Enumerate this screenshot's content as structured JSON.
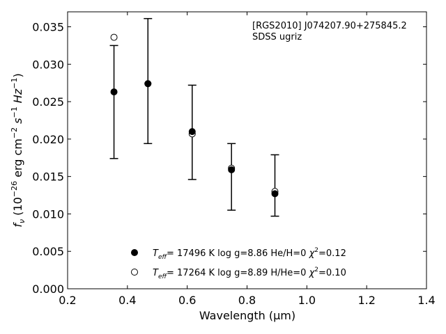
{
  "chart_data": {
    "type": "scatter",
    "annotation": [
      "[RGS2010] J074207.90+275845.2",
      "SDSS ugriz"
    ],
    "xlabel": "Wavelength (μm)",
    "ylabel_parts": {
      "f": "f",
      "f_sub": "ν",
      "unit_open": " (10",
      "exp26": "−26",
      "erg": " erg cm",
      "exp2": "−2",
      "s": " s",
      "exp1": "−1",
      "hz": " Hz",
      "exp1b": "−1",
      "close": ")"
    },
    "xlim": [
      0.2,
      1.4
    ],
    "ylim": [
      0.0,
      0.037
    ],
    "xticks": [
      "0.2",
      "0.4",
      "0.6",
      "0.8",
      "1.0",
      "1.2",
      "1.4"
    ],
    "yticks": [
      "0.000",
      "0.005",
      "0.010",
      "0.015",
      "0.020",
      "0.025",
      "0.030",
      "0.035"
    ],
    "observed": {
      "x": [
        0.3551,
        0.4686,
        0.6166,
        0.748,
        0.8932
      ],
      "y": [
        0.0263,
        0.0274,
        0.0209,
        0.016,
        0.0128
      ],
      "err_low": [
        0.0174,
        0.0194,
        0.0146,
        0.0105,
        0.0097
      ],
      "err_high": [
        0.0325,
        0.0361,
        0.0272,
        0.0194,
        0.0179
      ]
    },
    "series": [
      {
        "marker": "filled",
        "x": [
          0.3551,
          0.4686,
          0.6166,
          0.748,
          0.8932
        ],
        "y": [
          0.0263,
          0.0274,
          0.021,
          0.0159,
          0.0127
        ],
        "legend": {
          "T": "T",
          "T_sub": "eff",
          "text1": "= 17496 K  log g=8.86  He/H=0  ",
          "chi": "χ",
          "chi_sup": "2",
          "text2": "=0.12"
        }
      },
      {
        "marker": "open",
        "x": [
          0.3551,
          0.4686,
          0.6166,
          0.748,
          0.8932
        ],
        "y": [
          0.0336,
          0.0274,
          0.0207,
          0.0161,
          0.013
        ],
        "legend": {
          "T": "T",
          "T_sub": "eff",
          "text1": "= 17264 K  log g=8.89  H/He=0  ",
          "chi": "χ",
          "chi_sup": "2",
          "text2": "=0.10"
        }
      }
    ]
  }
}
